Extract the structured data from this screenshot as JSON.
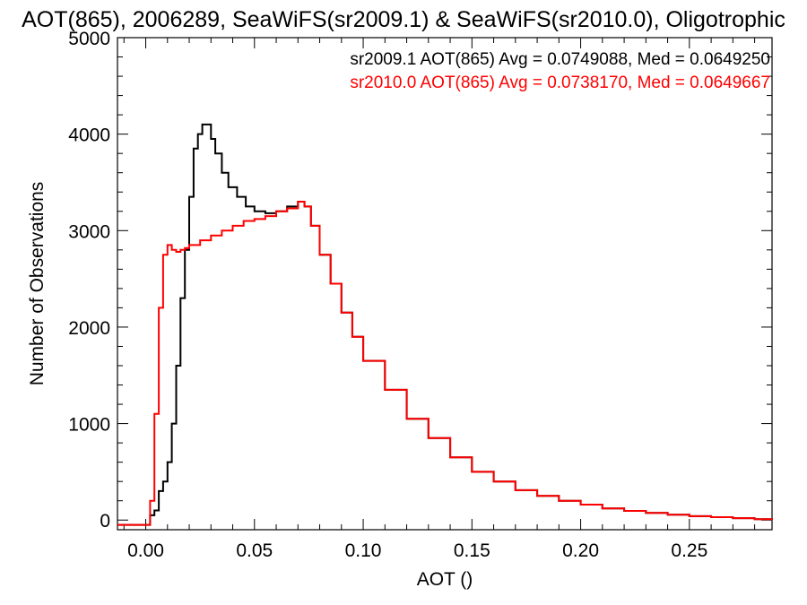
{
  "chart_data": {
    "type": "line",
    "title": "AOT(865), 2006289, SeaWiFS(sr2009.1) & SeaWiFS(sr2010.0), Oligotrophic",
    "xlabel": "AOT ()",
    "ylabel": "Number of Observations",
    "xlim": [
      -0.013,
      0.288
    ],
    "ylim": [
      -100,
      5000
    ],
    "x_ticks": [
      0.0,
      0.05,
      0.1,
      0.15,
      0.2,
      0.25
    ],
    "x_tick_labels": [
      "0.00",
      "0.05",
      "0.10",
      "0.15",
      "0.20",
      "0.25"
    ],
    "y_ticks": [
      0,
      1000,
      2000,
      3000,
      4000,
      5000
    ],
    "y_tick_labels": [
      "0",
      "1000",
      "2000",
      "3000",
      "4000",
      "5000"
    ],
    "grid": false,
    "annotations": [
      {
        "text": "sr2009.1 AOT(865) Avg = 0.0749088, Med = 0.0649250",
        "color": "#000000"
      },
      {
        "text": "sr2010.0 AOT(865) Avg = 0.0738170, Med = 0.0649667",
        "color": "#ff0000"
      }
    ],
    "series": [
      {
        "name": "sr2009.1",
        "color": "#000000",
        "x": [
          -0.013,
          0.0,
          0.002,
          0.004,
          0.006,
          0.008,
          0.01,
          0.012,
          0.014,
          0.016,
          0.018,
          0.02,
          0.022,
          0.024,
          0.026,
          0.028,
          0.03,
          0.032,
          0.035,
          0.038,
          0.042,
          0.046,
          0.05,
          0.055,
          0.06,
          0.065,
          0.07,
          0.073,
          0.076,
          0.08,
          0.085,
          0.09,
          0.095,
          0.1,
          0.11,
          0.12,
          0.13,
          0.14,
          0.15,
          0.16,
          0.17,
          0.18,
          0.19,
          0.2,
          0.21,
          0.22,
          0.23,
          0.24,
          0.25,
          0.26,
          0.27,
          0.28,
          0.288
        ],
        "y": [
          -50,
          -50,
          50,
          100,
          300,
          400,
          600,
          1000,
          1600,
          2300,
          2800,
          3350,
          3850,
          4000,
          4100,
          4100,
          3950,
          3800,
          3600,
          3450,
          3350,
          3250,
          3200,
          3180,
          3200,
          3250,
          3300,
          3250,
          3050,
          2750,
          2450,
          2150,
          1900,
          1650,
          1350,
          1050,
          850,
          650,
          500,
          400,
          310,
          250,
          200,
          160,
          120,
          95,
          75,
          55,
          40,
          30,
          20,
          10,
          5
        ]
      },
      {
        "name": "sr2010.0",
        "color": "#ff0000",
        "x": [
          -0.013,
          0.0,
          0.002,
          0.004,
          0.006,
          0.008,
          0.01,
          0.012,
          0.014,
          0.016,
          0.018,
          0.02,
          0.025,
          0.03,
          0.035,
          0.04,
          0.045,
          0.05,
          0.055,
          0.06,
          0.065,
          0.07,
          0.073,
          0.076,
          0.08,
          0.085,
          0.09,
          0.095,
          0.1,
          0.11,
          0.12,
          0.13,
          0.14,
          0.15,
          0.16,
          0.17,
          0.18,
          0.19,
          0.2,
          0.21,
          0.22,
          0.23,
          0.24,
          0.25,
          0.26,
          0.27,
          0.28,
          0.288
        ],
        "y": [
          -50,
          -50,
          200,
          1100,
          2200,
          2750,
          2850,
          2800,
          2780,
          2800,
          2820,
          2850,
          2900,
          2950,
          3000,
          3050,
          3100,
          3120,
          3150,
          3200,
          3230,
          3300,
          3250,
          3050,
          2750,
          2450,
          2150,
          1900,
          1650,
          1350,
          1050,
          850,
          650,
          500,
          400,
          310,
          250,
          200,
          160,
          120,
          95,
          75,
          55,
          40,
          30,
          20,
          10,
          5
        ]
      }
    ]
  }
}
